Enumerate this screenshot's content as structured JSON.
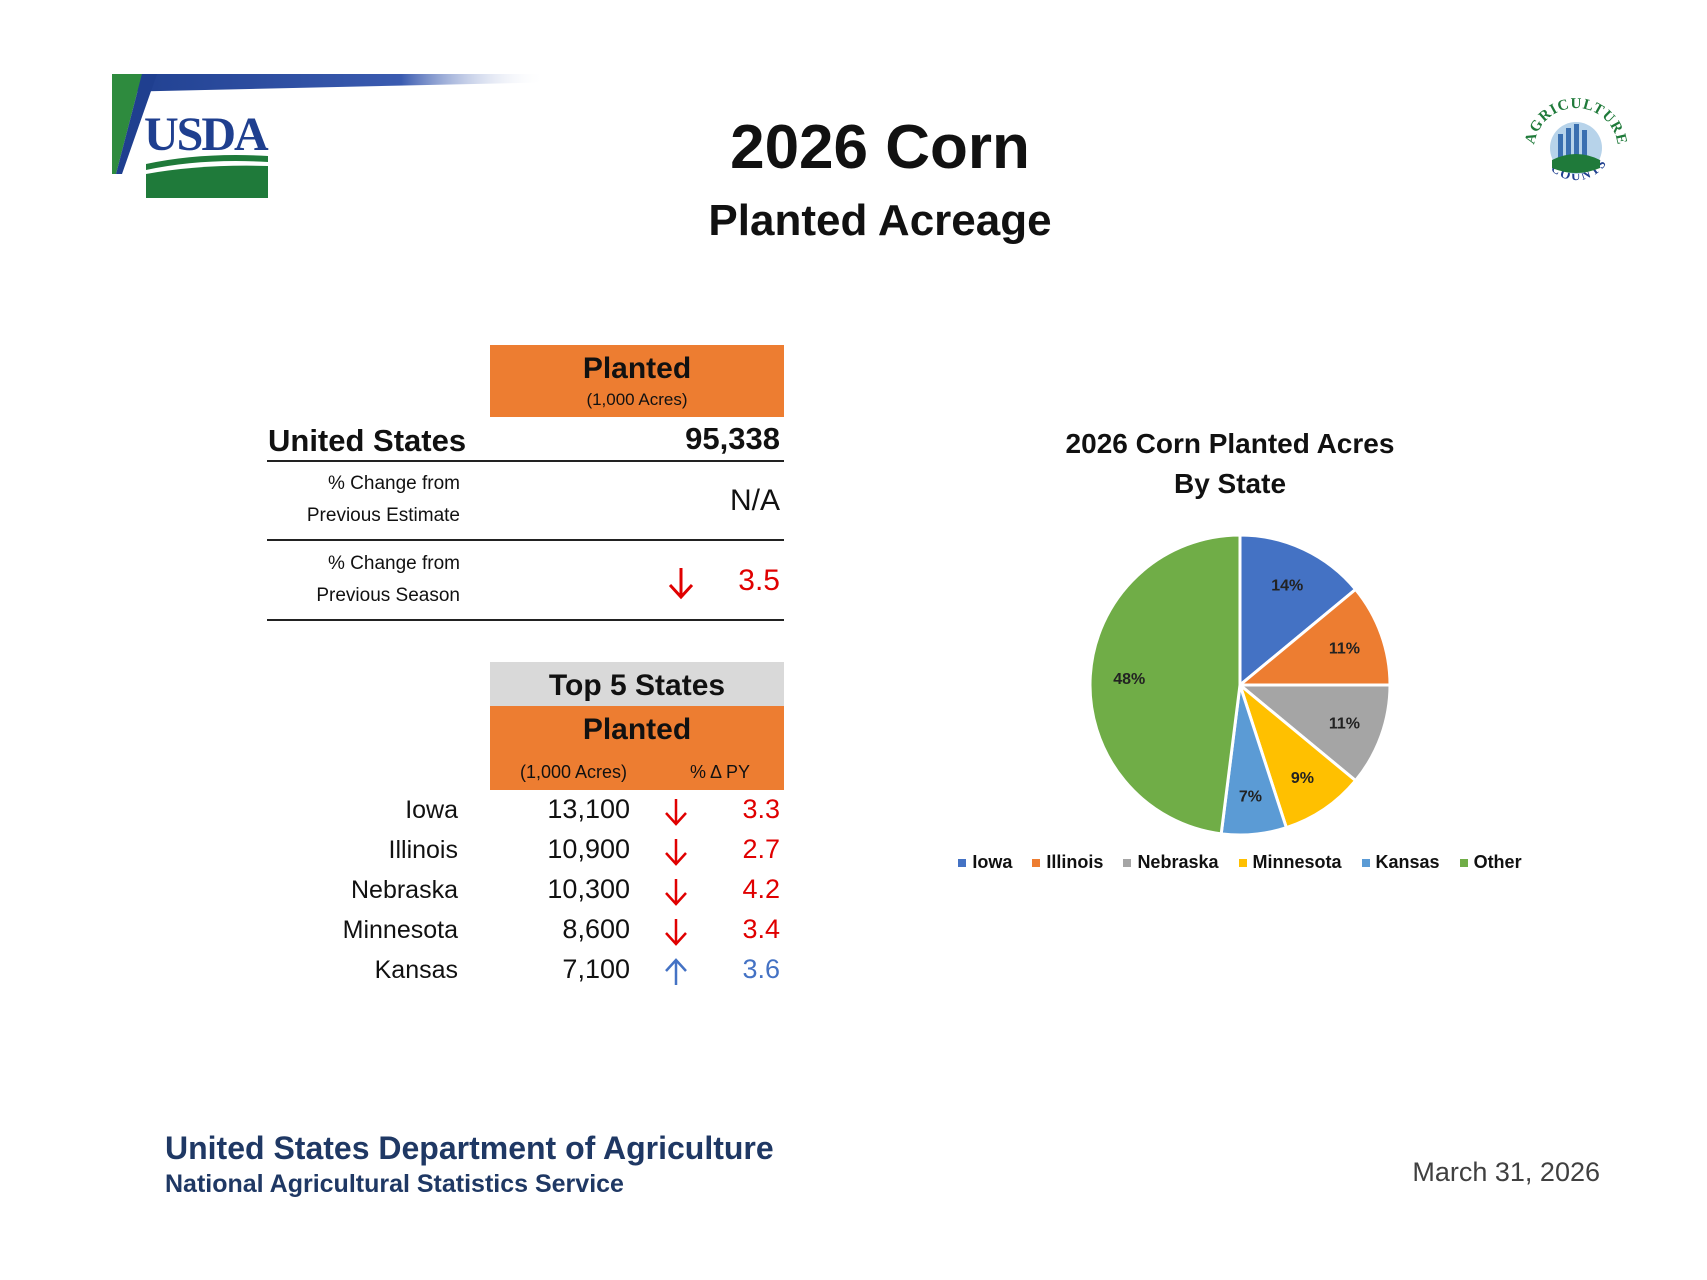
{
  "header": {
    "title": "2026 Corn",
    "subtitle": "Planted Acreage",
    "usda_logo_text": "USDA",
    "ag_counts_logo_text": "AGRICULTURE COUNTS"
  },
  "summary": {
    "planted_header": "Planted",
    "planted_units": "(1,000 Acres)",
    "us_label": "United States",
    "us_value": "95,338",
    "change_prev_estimate_label_1": "% Change from",
    "change_prev_estimate_label_2": "Previous Estimate",
    "change_prev_estimate_value": "N/A",
    "change_prev_season_label_1": "% Change from",
    "change_prev_season_label_2": "Previous Season",
    "change_prev_season_value": "3.5",
    "change_prev_season_direction": "down"
  },
  "top5": {
    "header": "Top 5 States",
    "planted_header": "Planted",
    "col_acres": "(1,000 Acres)",
    "col_pct": "% Δ PY",
    "rows": [
      {
        "state": "Iowa",
        "acres": "13,100",
        "direction": "down",
        "pct": "3.3"
      },
      {
        "state": "Illinois",
        "acres": "10,900",
        "direction": "down",
        "pct": "2.7"
      },
      {
        "state": "Nebraska",
        "acres": "10,300",
        "direction": "down",
        "pct": "4.2"
      },
      {
        "state": "Minnesota",
        "acres": "8,600",
        "direction": "down",
        "pct": "3.4"
      },
      {
        "state": "Kansas",
        "acres": "7,100",
        "direction": "up",
        "pct": "3.6"
      }
    ]
  },
  "chart_data": {
    "type": "pie",
    "title": "2026 Corn Planted Acres",
    "subtitle": "By State",
    "categories": [
      "Iowa",
      "Illinois",
      "Nebraska",
      "Minnesota",
      "Kansas",
      "Other"
    ],
    "values": [
      14,
      11,
      11,
      9,
      7,
      48
    ],
    "labels": [
      "14%",
      "11%",
      "11%",
      "9%",
      "7%",
      "48%"
    ],
    "colors": [
      "#4472C4",
      "#ED7D31",
      "#A5A5A5",
      "#FFC000",
      "#5B9BD5",
      "#70AD47"
    ],
    "legend": "bottom"
  },
  "footer": {
    "org_line_1": "United States Department of Agriculture",
    "org_line_2": "National Agricultural Statistics Service",
    "date": "March 31, 2026"
  },
  "colors": {
    "orange": "#ED7D31",
    "gray_header": "#D9D9D9",
    "down_red": "#E00000",
    "up_blue": "#4472C4",
    "footer_navy": "#1F3864"
  }
}
